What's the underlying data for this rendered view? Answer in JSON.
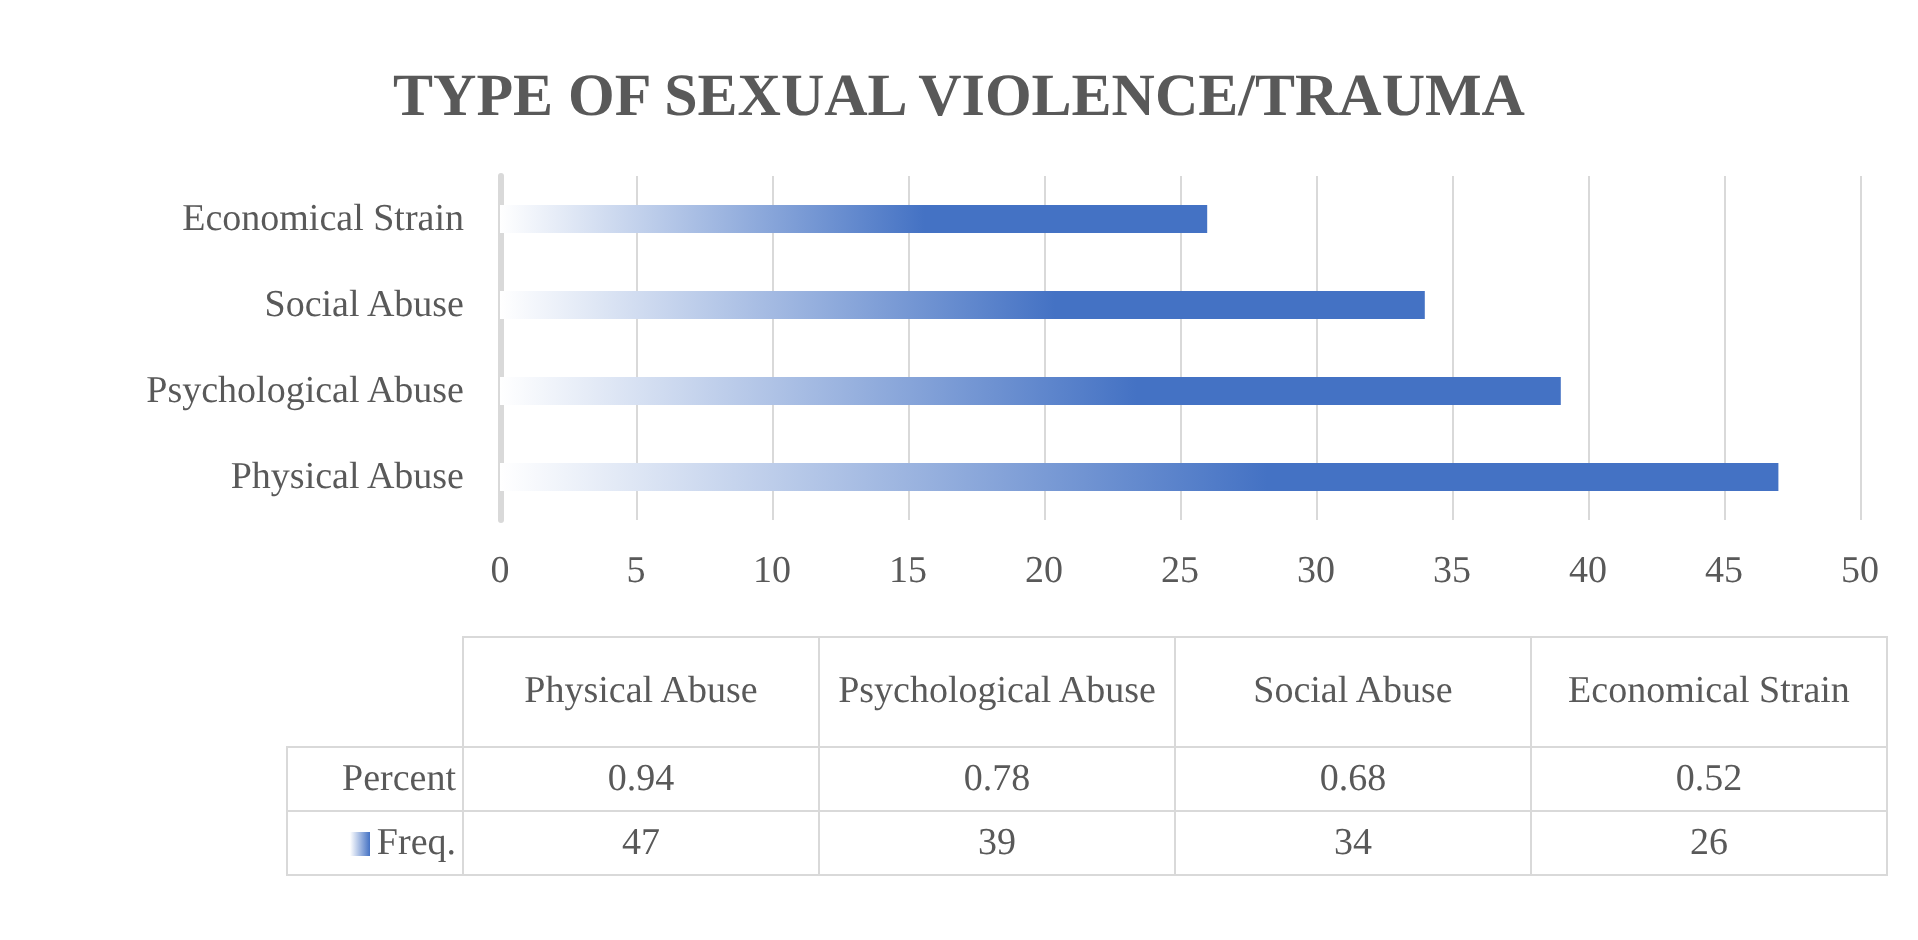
{
  "chart_data": [
    {
      "type": "bar",
      "orientation": "horizontal",
      "title": "TYPE OF SEXUAL VIOLENCE/TRAUMA",
      "categories": [
        "Economical Strain",
        "Social Abuse",
        "Psychological Abuse",
        "Physical Abuse"
      ],
      "series": [
        {
          "color": "#4472c4",
          "values": [
            26,
            34,
            39,
            47
          ]
        }
      ],
      "xlim": [
        0,
        50
      ],
      "xticks": [
        0,
        5,
        10,
        15,
        20,
        25,
        30,
        35,
        40,
        45,
        50
      ],
      "grid": "x"
    },
    {
      "type": "other",
      "categories": [
        "Physical Abuse",
        "Psychological Abuse",
        "Social Abuse",
        "Economical Strain"
      ],
      "series": [
        {
          "name": "Percent",
          "values": [
            0.94,
            0.78,
            0.68,
            0.52
          ]
        },
        {
          "name": "Freq.",
          "color": "#4472c4",
          "values": [
            47,
            39,
            34,
            26
          ]
        }
      ],
      "data_labels": true
    }
  ]
}
